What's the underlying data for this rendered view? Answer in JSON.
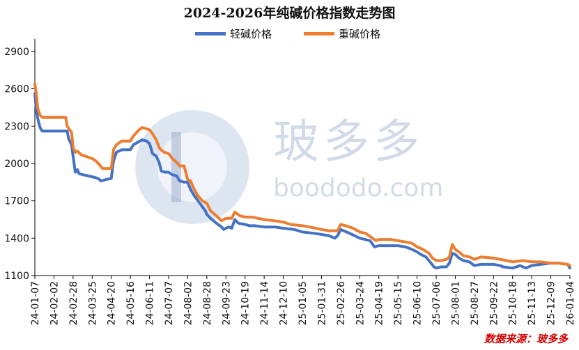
{
  "title": "2024-2026年纯碱价格指数走势图",
  "source_label": "数据来源：玻多多",
  "watermark": {
    "text": "玻多多",
    "domain": "boododo.com"
  },
  "chart_data": {
    "type": "line",
    "title": "2024-2026年纯碱价格指数走势图",
    "xlabel": "",
    "ylabel": "",
    "ylim": [
      1100,
      3000
    ],
    "yticks": [
      1100,
      1400,
      1700,
      2000,
      2300,
      2600,
      2900
    ],
    "x_tick_labels": [
      "24-01-07",
      "24-02-02",
      "24-02-28",
      "24-03-25",
      "24-04-20",
      "24-05-16",
      "24-06-11",
      "24-07-07",
      "24-08-02",
      "24-08-28",
      "24-09-23",
      "24-10-19",
      "24-11-14",
      "24-12-10",
      "25-01-05",
      "25-01-31",
      "25-02-26",
      "25-03-24",
      "25-04-19",
      "25-05-15",
      "25-06-10",
      "25-07-06",
      "25-08-01",
      "25-08-27",
      "25-09-22",
      "25-10-18",
      "25-11-13",
      "25-12-09",
      "26-01-04"
    ],
    "legend_position": "top-center",
    "grid": false,
    "series": [
      {
        "name": "轻碱价格",
        "color": "#4472C4",
        "points": [
          [
            "24-01-07",
            2560
          ],
          [
            "24-01-09",
            2430
          ],
          [
            "24-01-11",
            2360
          ],
          [
            "24-01-14",
            2290
          ],
          [
            "24-01-17",
            2260
          ],
          [
            "24-01-24",
            2260
          ],
          [
            "24-02-02",
            2260
          ],
          [
            "24-02-12",
            2260
          ],
          [
            "24-02-20",
            2260
          ],
          [
            "24-02-22",
            2200
          ],
          [
            "24-02-26",
            2150
          ],
          [
            "24-02-28",
            2060
          ],
          [
            "24-03-02",
            1930
          ],
          [
            "24-03-05",
            1950
          ],
          [
            "24-03-07",
            1920
          ],
          [
            "24-03-12",
            1910
          ],
          [
            "24-03-20",
            1900
          ],
          [
            "24-03-27",
            1890
          ],
          [
            "24-04-02",
            1880
          ],
          [
            "24-04-06",
            1860
          ],
          [
            "24-04-12",
            1870
          ],
          [
            "24-04-20",
            1880
          ],
          [
            "24-04-23",
            2020
          ],
          [
            "24-04-27",
            2090
          ],
          [
            "24-05-04",
            2110
          ],
          [
            "24-05-12",
            2110
          ],
          [
            "24-05-16",
            2110
          ],
          [
            "24-05-20",
            2150
          ],
          [
            "24-05-26",
            2170
          ],
          [
            "24-06-01",
            2190
          ],
          [
            "24-06-07",
            2180
          ],
          [
            "24-06-11",
            2160
          ],
          [
            "24-06-15",
            2080
          ],
          [
            "24-06-20",
            2060
          ],
          [
            "24-06-24",
            2010
          ],
          [
            "24-06-27",
            1940
          ],
          [
            "24-07-02",
            1930
          ],
          [
            "24-07-07",
            1930
          ],
          [
            "24-07-12",
            1910
          ],
          [
            "24-07-18",
            1900
          ],
          [
            "24-07-22",
            1860
          ],
          [
            "24-07-28",
            1850
          ],
          [
            "24-08-02",
            1850
          ],
          [
            "24-08-06",
            1790
          ],
          [
            "24-08-10",
            1750
          ],
          [
            "24-08-16",
            1700
          ],
          [
            "24-08-21",
            1660
          ],
          [
            "24-08-26",
            1620
          ],
          [
            "24-08-28",
            1590
          ],
          [
            "24-09-02",
            1560
          ],
          [
            "24-09-10",
            1520
          ],
          [
            "24-09-17",
            1490
          ],
          [
            "24-09-20",
            1470
          ],
          [
            "24-09-23",
            1480
          ],
          [
            "24-09-27",
            1490
          ],
          [
            "24-10-01",
            1480
          ],
          [
            "24-10-05",
            1550
          ],
          [
            "24-10-10",
            1520
          ],
          [
            "24-10-19",
            1510
          ],
          [
            "24-10-25",
            1500
          ],
          [
            "24-11-01",
            1500
          ],
          [
            "24-11-14",
            1490
          ],
          [
            "24-11-28",
            1490
          ],
          [
            "24-12-10",
            1480
          ],
          [
            "24-12-25",
            1470
          ],
          [
            "25-01-05",
            1450
          ],
          [
            "25-01-20",
            1440
          ],
          [
            "25-01-31",
            1430
          ],
          [
            "25-02-10",
            1420
          ],
          [
            "25-02-18",
            1400
          ],
          [
            "25-02-22",
            1420
          ],
          [
            "25-02-26",
            1470
          ],
          [
            "25-03-02",
            1460
          ],
          [
            "25-03-10",
            1440
          ],
          [
            "25-03-17",
            1420
          ],
          [
            "25-03-24",
            1400
          ],
          [
            "25-03-31",
            1390
          ],
          [
            "25-04-07",
            1380
          ],
          [
            "25-04-13",
            1330
          ],
          [
            "25-04-19",
            1340
          ],
          [
            "25-04-26",
            1340
          ],
          [
            "25-05-03",
            1340
          ],
          [
            "25-05-15",
            1340
          ],
          [
            "25-05-25",
            1330
          ],
          [
            "25-06-03",
            1310
          ],
          [
            "25-06-10",
            1290
          ],
          [
            "25-06-15",
            1270
          ],
          [
            "25-06-22",
            1250
          ],
          [
            "25-06-29",
            1200
          ],
          [
            "25-07-03",
            1170
          ],
          [
            "25-07-06",
            1160
          ],
          [
            "25-07-13",
            1170
          ],
          [
            "25-07-20",
            1170
          ],
          [
            "25-07-24",
            1200
          ],
          [
            "25-07-28",
            1280
          ],
          [
            "25-08-01",
            1270
          ],
          [
            "25-08-06",
            1240
          ],
          [
            "25-08-12",
            1220
          ],
          [
            "25-08-20",
            1210
          ],
          [
            "25-08-27",
            1180
          ],
          [
            "25-09-05",
            1190
          ],
          [
            "25-09-22",
            1190
          ],
          [
            "25-10-01",
            1180
          ],
          [
            "25-10-05",
            1170
          ],
          [
            "25-10-18",
            1160
          ],
          [
            "25-10-28",
            1180
          ],
          [
            "25-11-05",
            1160
          ],
          [
            "25-11-13",
            1180
          ],
          [
            "25-11-25",
            1190
          ],
          [
            "25-12-09",
            1200
          ],
          [
            "25-12-20",
            1200
          ],
          [
            "26-01-01",
            1190
          ],
          [
            "26-01-04",
            1160
          ]
        ]
      },
      {
        "name": "重碱价格",
        "color": "#ED7D31",
        "points": [
          [
            "24-01-07",
            2640
          ],
          [
            "24-01-09",
            2560
          ],
          [
            "24-01-11",
            2440
          ],
          [
            "24-01-14",
            2390
          ],
          [
            "24-01-17",
            2370
          ],
          [
            "24-01-24",
            2370
          ],
          [
            "24-02-02",
            2370
          ],
          [
            "24-02-12",
            2370
          ],
          [
            "24-02-18",
            2370
          ],
          [
            "24-02-20",
            2300
          ],
          [
            "24-02-26",
            2250
          ],
          [
            "24-02-28",
            2130
          ],
          [
            "24-03-02",
            2090
          ],
          [
            "24-03-05",
            2100
          ],
          [
            "24-03-10",
            2070
          ],
          [
            "24-03-15",
            2060
          ],
          [
            "24-03-25",
            2040
          ],
          [
            "24-03-30",
            2020
          ],
          [
            "24-04-04",
            1990
          ],
          [
            "24-04-08",
            1960
          ],
          [
            "24-04-14",
            1960
          ],
          [
            "24-04-20",
            1960
          ],
          [
            "24-04-23",
            2110
          ],
          [
            "24-04-27",
            2150
          ],
          [
            "24-05-04",
            2180
          ],
          [
            "24-05-16",
            2180
          ],
          [
            "24-05-20",
            2220
          ],
          [
            "24-05-26",
            2260
          ],
          [
            "24-06-01",
            2290
          ],
          [
            "24-06-06",
            2280
          ],
          [
            "24-06-11",
            2270
          ],
          [
            "24-06-15",
            2240
          ],
          [
            "24-06-20",
            2190
          ],
          [
            "24-06-25",
            2120
          ],
          [
            "24-07-01",
            2090
          ],
          [
            "24-07-07",
            2080
          ],
          [
            "24-07-12",
            2040
          ],
          [
            "24-07-18",
            2010
          ],
          [
            "24-07-22",
            1980
          ],
          [
            "24-07-28",
            1980
          ],
          [
            "24-08-02",
            1870
          ],
          [
            "24-08-06",
            1860
          ],
          [
            "24-08-10",
            1800
          ],
          [
            "24-08-16",
            1740
          ],
          [
            "24-08-22",
            1700
          ],
          [
            "24-08-28",
            1680
          ],
          [
            "24-09-02",
            1620
          ],
          [
            "24-09-10",
            1580
          ],
          [
            "24-09-17",
            1540
          ],
          [
            "24-09-23",
            1560
          ],
          [
            "24-10-01",
            1560
          ],
          [
            "24-10-05",
            1610
          ],
          [
            "24-10-12",
            1580
          ],
          [
            "24-10-19",
            1570
          ],
          [
            "24-10-28",
            1570
          ],
          [
            "24-11-14",
            1550
          ],
          [
            "24-11-28",
            1540
          ],
          [
            "24-12-10",
            1530
          ],
          [
            "24-12-20",
            1510
          ],
          [
            "25-01-05",
            1500
          ],
          [
            "25-01-15",
            1490
          ],
          [
            "25-01-31",
            1470
          ],
          [
            "25-02-10",
            1460
          ],
          [
            "25-02-22",
            1460
          ],
          [
            "25-02-26",
            1510
          ],
          [
            "25-03-05",
            1500
          ],
          [
            "25-03-15",
            1480
          ],
          [
            "25-03-24",
            1450
          ],
          [
            "25-04-01",
            1440
          ],
          [
            "25-04-08",
            1410
          ],
          [
            "25-04-15",
            1380
          ],
          [
            "25-04-19",
            1390
          ],
          [
            "25-04-26",
            1390
          ],
          [
            "25-05-05",
            1390
          ],
          [
            "25-05-15",
            1380
          ],
          [
            "25-05-25",
            1370
          ],
          [
            "25-06-03",
            1360
          ],
          [
            "25-06-10",
            1330
          ],
          [
            "25-06-18",
            1310
          ],
          [
            "25-06-26",
            1280
          ],
          [
            "25-07-01",
            1240
          ],
          [
            "25-07-06",
            1220
          ],
          [
            "25-07-13",
            1220
          ],
          [
            "25-07-20",
            1230
          ],
          [
            "25-07-24",
            1250
          ],
          [
            "25-07-28",
            1350
          ],
          [
            "25-08-01",
            1310
          ],
          [
            "25-08-06",
            1290
          ],
          [
            "25-08-12",
            1260
          ],
          [
            "25-08-20",
            1250
          ],
          [
            "25-08-27",
            1230
          ],
          [
            "25-09-05",
            1250
          ],
          [
            "25-09-22",
            1240
          ],
          [
            "25-10-01",
            1230
          ],
          [
            "25-10-10",
            1220
          ],
          [
            "25-10-18",
            1210
          ],
          [
            "25-11-01",
            1220
          ],
          [
            "25-11-13",
            1210
          ],
          [
            "25-11-25",
            1210
          ],
          [
            "25-12-09",
            1200
          ],
          [
            "25-12-20",
            1200
          ],
          [
            "26-01-01",
            1190
          ],
          [
            "26-01-04",
            1180
          ]
        ]
      }
    ]
  }
}
